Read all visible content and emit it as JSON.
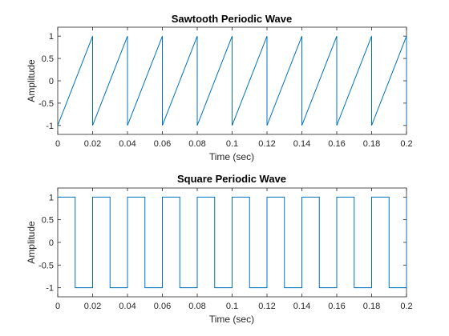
{
  "chart_data": [
    {
      "type": "line",
      "title": "Sawtooth Periodic Wave",
      "xlabel": "Time (sec)",
      "ylabel": "Amplitude",
      "xlim": [
        0,
        0.2
      ],
      "ylim": [
        -1.2,
        1.2
      ],
      "xticks": [
        0,
        0.02,
        0.04,
        0.06,
        0.08,
        0.1,
        0.12,
        0.14,
        0.16,
        0.18,
        0.2
      ],
      "xticklabels": [
        "0",
        "0.02",
        "0.04",
        "0.06",
        "0.08",
        "0.1",
        "0.12",
        "0.14",
        "0.16",
        "0.18",
        "0.2"
      ],
      "yticks": [
        1,
        0.5,
        0,
        -0.5,
        -1
      ],
      "yticklabels": [
        "1",
        "0.5",
        "0",
        "-0.5",
        "-1"
      ],
      "grid": false,
      "series": [
        {
          "color": "#0072BD",
          "x": [
            0,
            0.02,
            0.02,
            0.04,
            0.04,
            0.06,
            0.06,
            0.08,
            0.08,
            0.1,
            0.1,
            0.12,
            0.12,
            0.14,
            0.14,
            0.16,
            0.16,
            0.18,
            0.18,
            0.2,
            0.2
          ],
          "y": [
            -1,
            1,
            -1,
            1,
            -1,
            1,
            -1,
            1,
            -1,
            1,
            -1,
            1,
            -1,
            1,
            -1,
            1,
            -1,
            1,
            -1,
            1,
            -1
          ]
        }
      ]
    },
    {
      "type": "line",
      "title": "Square Periodic Wave",
      "xlabel": "Time (sec)",
      "ylabel": "Amplitude",
      "xlim": [
        0,
        0.2
      ],
      "ylim": [
        -1.2,
        1.2
      ],
      "xticks": [
        0,
        0.02,
        0.04,
        0.06,
        0.08,
        0.1,
        0.12,
        0.14,
        0.16,
        0.18,
        0.2
      ],
      "xticklabels": [
        "0",
        "0.02",
        "0.04",
        "0.06",
        "0.08",
        "0.1",
        "0.12",
        "0.14",
        "0.16",
        "0.18",
        "0.2"
      ],
      "yticks": [
        1,
        0.5,
        0,
        -0.5,
        -1
      ],
      "yticklabels": [
        "1",
        "0.5",
        "0",
        "-0.5",
        "-1"
      ],
      "grid": false,
      "series": [
        {
          "color": "#0072BD",
          "x": [
            0,
            0.01,
            0.01,
            0.02,
            0.02,
            0.03,
            0.03,
            0.04,
            0.04,
            0.05,
            0.05,
            0.06,
            0.06,
            0.07,
            0.07,
            0.08,
            0.08,
            0.09,
            0.09,
            0.1,
            0.1,
            0.11,
            0.11,
            0.12,
            0.12,
            0.13,
            0.13,
            0.14,
            0.14,
            0.15,
            0.15,
            0.16,
            0.16,
            0.17,
            0.17,
            0.18,
            0.18,
            0.19,
            0.19,
            0.2,
            0.2
          ],
          "y": [
            1,
            1,
            -1,
            -1,
            1,
            1,
            -1,
            -1,
            1,
            1,
            -1,
            -1,
            1,
            1,
            -1,
            -1,
            1,
            1,
            -1,
            -1,
            1,
            1,
            -1,
            -1,
            1,
            1,
            -1,
            -1,
            1,
            1,
            -1,
            -1,
            1,
            1,
            -1,
            -1,
            1,
            1,
            -1,
            -1,
            1
          ]
        }
      ]
    }
  ]
}
